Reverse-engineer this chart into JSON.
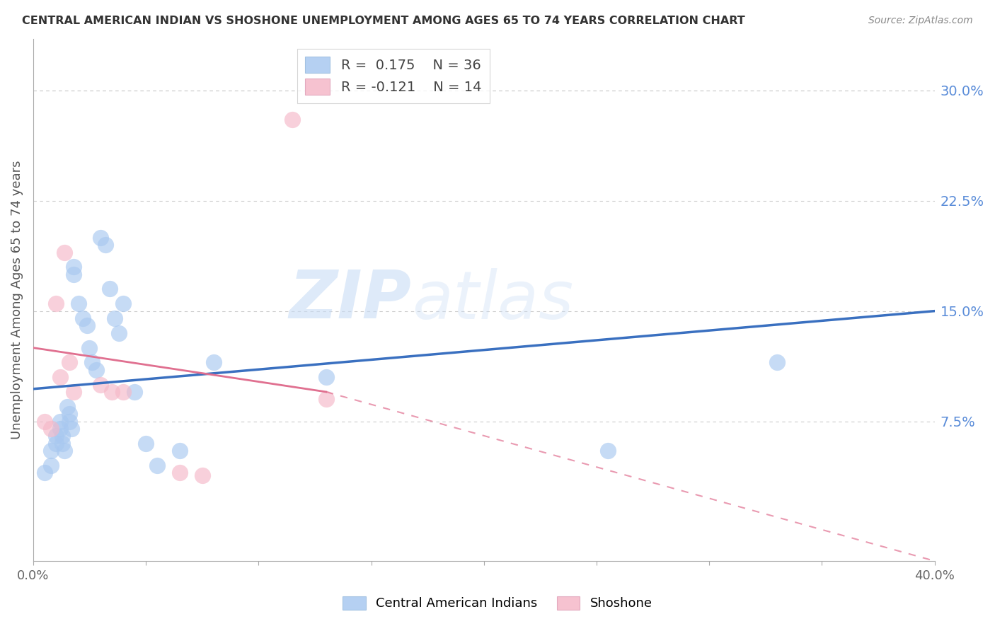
{
  "title": "CENTRAL AMERICAN INDIAN VS SHOSHONE UNEMPLOYMENT AMONG AGES 65 TO 74 YEARS CORRELATION CHART",
  "source": "Source: ZipAtlas.com",
  "ylabel": "Unemployment Among Ages 65 to 74 years",
  "xlim": [
    0.0,
    0.4
  ],
  "ylim": [
    -0.02,
    0.335
  ],
  "yticks_right": [
    0.075,
    0.15,
    0.225,
    0.3
  ],
  "ytick_right_labels": [
    "7.5%",
    "15.0%",
    "22.5%",
    "30.0%"
  ],
  "blue_color": "#A8C8F0",
  "pink_color": "#F5B8C8",
  "trend_blue_color": "#3A70C0",
  "trend_pink_color": "#E07090",
  "blue_x": [
    0.005,
    0.008,
    0.008,
    0.01,
    0.01,
    0.012,
    0.012,
    0.013,
    0.013,
    0.014,
    0.015,
    0.016,
    0.016,
    0.017,
    0.018,
    0.018,
    0.02,
    0.022,
    0.024,
    0.025,
    0.026,
    0.028,
    0.03,
    0.032,
    0.034,
    0.036,
    0.038,
    0.04,
    0.045,
    0.05,
    0.055,
    0.065,
    0.08,
    0.13,
    0.255,
    0.33
  ],
  "blue_y": [
    0.04,
    0.055,
    0.045,
    0.065,
    0.06,
    0.075,
    0.07,
    0.065,
    0.06,
    0.055,
    0.085,
    0.08,
    0.075,
    0.07,
    0.18,
    0.175,
    0.155,
    0.145,
    0.14,
    0.125,
    0.115,
    0.11,
    0.2,
    0.195,
    0.165,
    0.145,
    0.135,
    0.155,
    0.095,
    0.06,
    0.045,
    0.055,
    0.115,
    0.105,
    0.055,
    0.115
  ],
  "pink_x": [
    0.005,
    0.008,
    0.01,
    0.012,
    0.014,
    0.016,
    0.018,
    0.03,
    0.035,
    0.04,
    0.065,
    0.075,
    0.115,
    0.13
  ],
  "pink_y": [
    0.075,
    0.07,
    0.155,
    0.105,
    0.19,
    0.115,
    0.095,
    0.1,
    0.095,
    0.095,
    0.04,
    0.038,
    0.28,
    0.09
  ],
  "blue_trend_x0": 0.0,
  "blue_trend_y0": 0.097,
  "blue_trend_x1": 0.4,
  "blue_trend_y1": 0.15,
  "pink_trend_solid_x0": 0.0,
  "pink_trend_solid_y0": 0.125,
  "pink_trend_solid_x1": 0.13,
  "pink_trend_solid_y1": 0.095,
  "pink_trend_dash_x0": 0.13,
  "pink_trend_dash_y0": 0.095,
  "pink_trend_dash_x1": 0.4,
  "pink_trend_dash_y1": -0.02,
  "legend_r1_val": "0.175",
  "legend_n1_val": "36",
  "legend_r2_val": "-0.121",
  "legend_n2_val": "14",
  "watermark_zip": "ZIP",
  "watermark_atlas": "atlas",
  "bg_color": "#FFFFFF",
  "grid_color": "#CCCCCC",
  "right_tick_color": "#5B8DD9",
  "title_color": "#333333",
  "source_color": "#888888",
  "ylabel_color": "#555555",
  "spine_color": "#AAAAAA"
}
